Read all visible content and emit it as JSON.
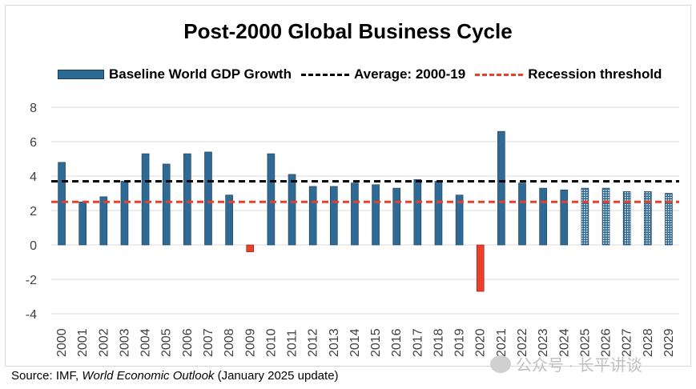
{
  "title": "Post-2000 Global Business Cycle",
  "legend": {
    "bars": "Baseline World GDP Growth",
    "average": "Average: 2000-19",
    "threshold": "Recession threshold"
  },
  "source": {
    "prefix": "Source: IMF, ",
    "publication": "World Economic Outlook",
    "suffix": " (January 2025 update)"
  },
  "watermark": "公众号 · 长平讲谈",
  "colors": {
    "bar": "#2e6a94",
    "negative_bar": "#e8402b",
    "average_line": "#000000",
    "threshold_line": "#e8402b"
  },
  "chart_data": {
    "type": "bar",
    "categories": [
      "2000",
      "2001",
      "2002",
      "2003",
      "2004",
      "2005",
      "2006",
      "2007",
      "2008",
      "2009",
      "2010",
      "2011",
      "2012",
      "2013",
      "2014",
      "2015",
      "2016",
      "2017",
      "2018",
      "2019",
      "2020",
      "2021",
      "2022",
      "2023",
      "2024",
      "2025",
      "2026",
      "2027",
      "2028",
      "2029"
    ],
    "series": [
      {
        "name": "Baseline World GDP Growth",
        "values": [
          4.8,
          2.5,
          2.8,
          3.7,
          5.3,
          4.7,
          5.3,
          5.4,
          2.9,
          -0.4,
          5.3,
          4.1,
          3.4,
          3.4,
          3.6,
          3.5,
          3.3,
          3.8,
          3.7,
          2.9,
          -2.7,
          6.6,
          3.6,
          3.3,
          3.2,
          3.3,
          3.3,
          3.1,
          3.1,
          3.0
        ]
      }
    ],
    "projected_from": "2025",
    "average_2000_19": 3.7,
    "recession_threshold": 2.5,
    "ylim": [
      -4,
      8
    ],
    "yticks": [
      -4,
      -2,
      0,
      2,
      4,
      6,
      8
    ],
    "grid": true,
    "legend_position": "top"
  }
}
